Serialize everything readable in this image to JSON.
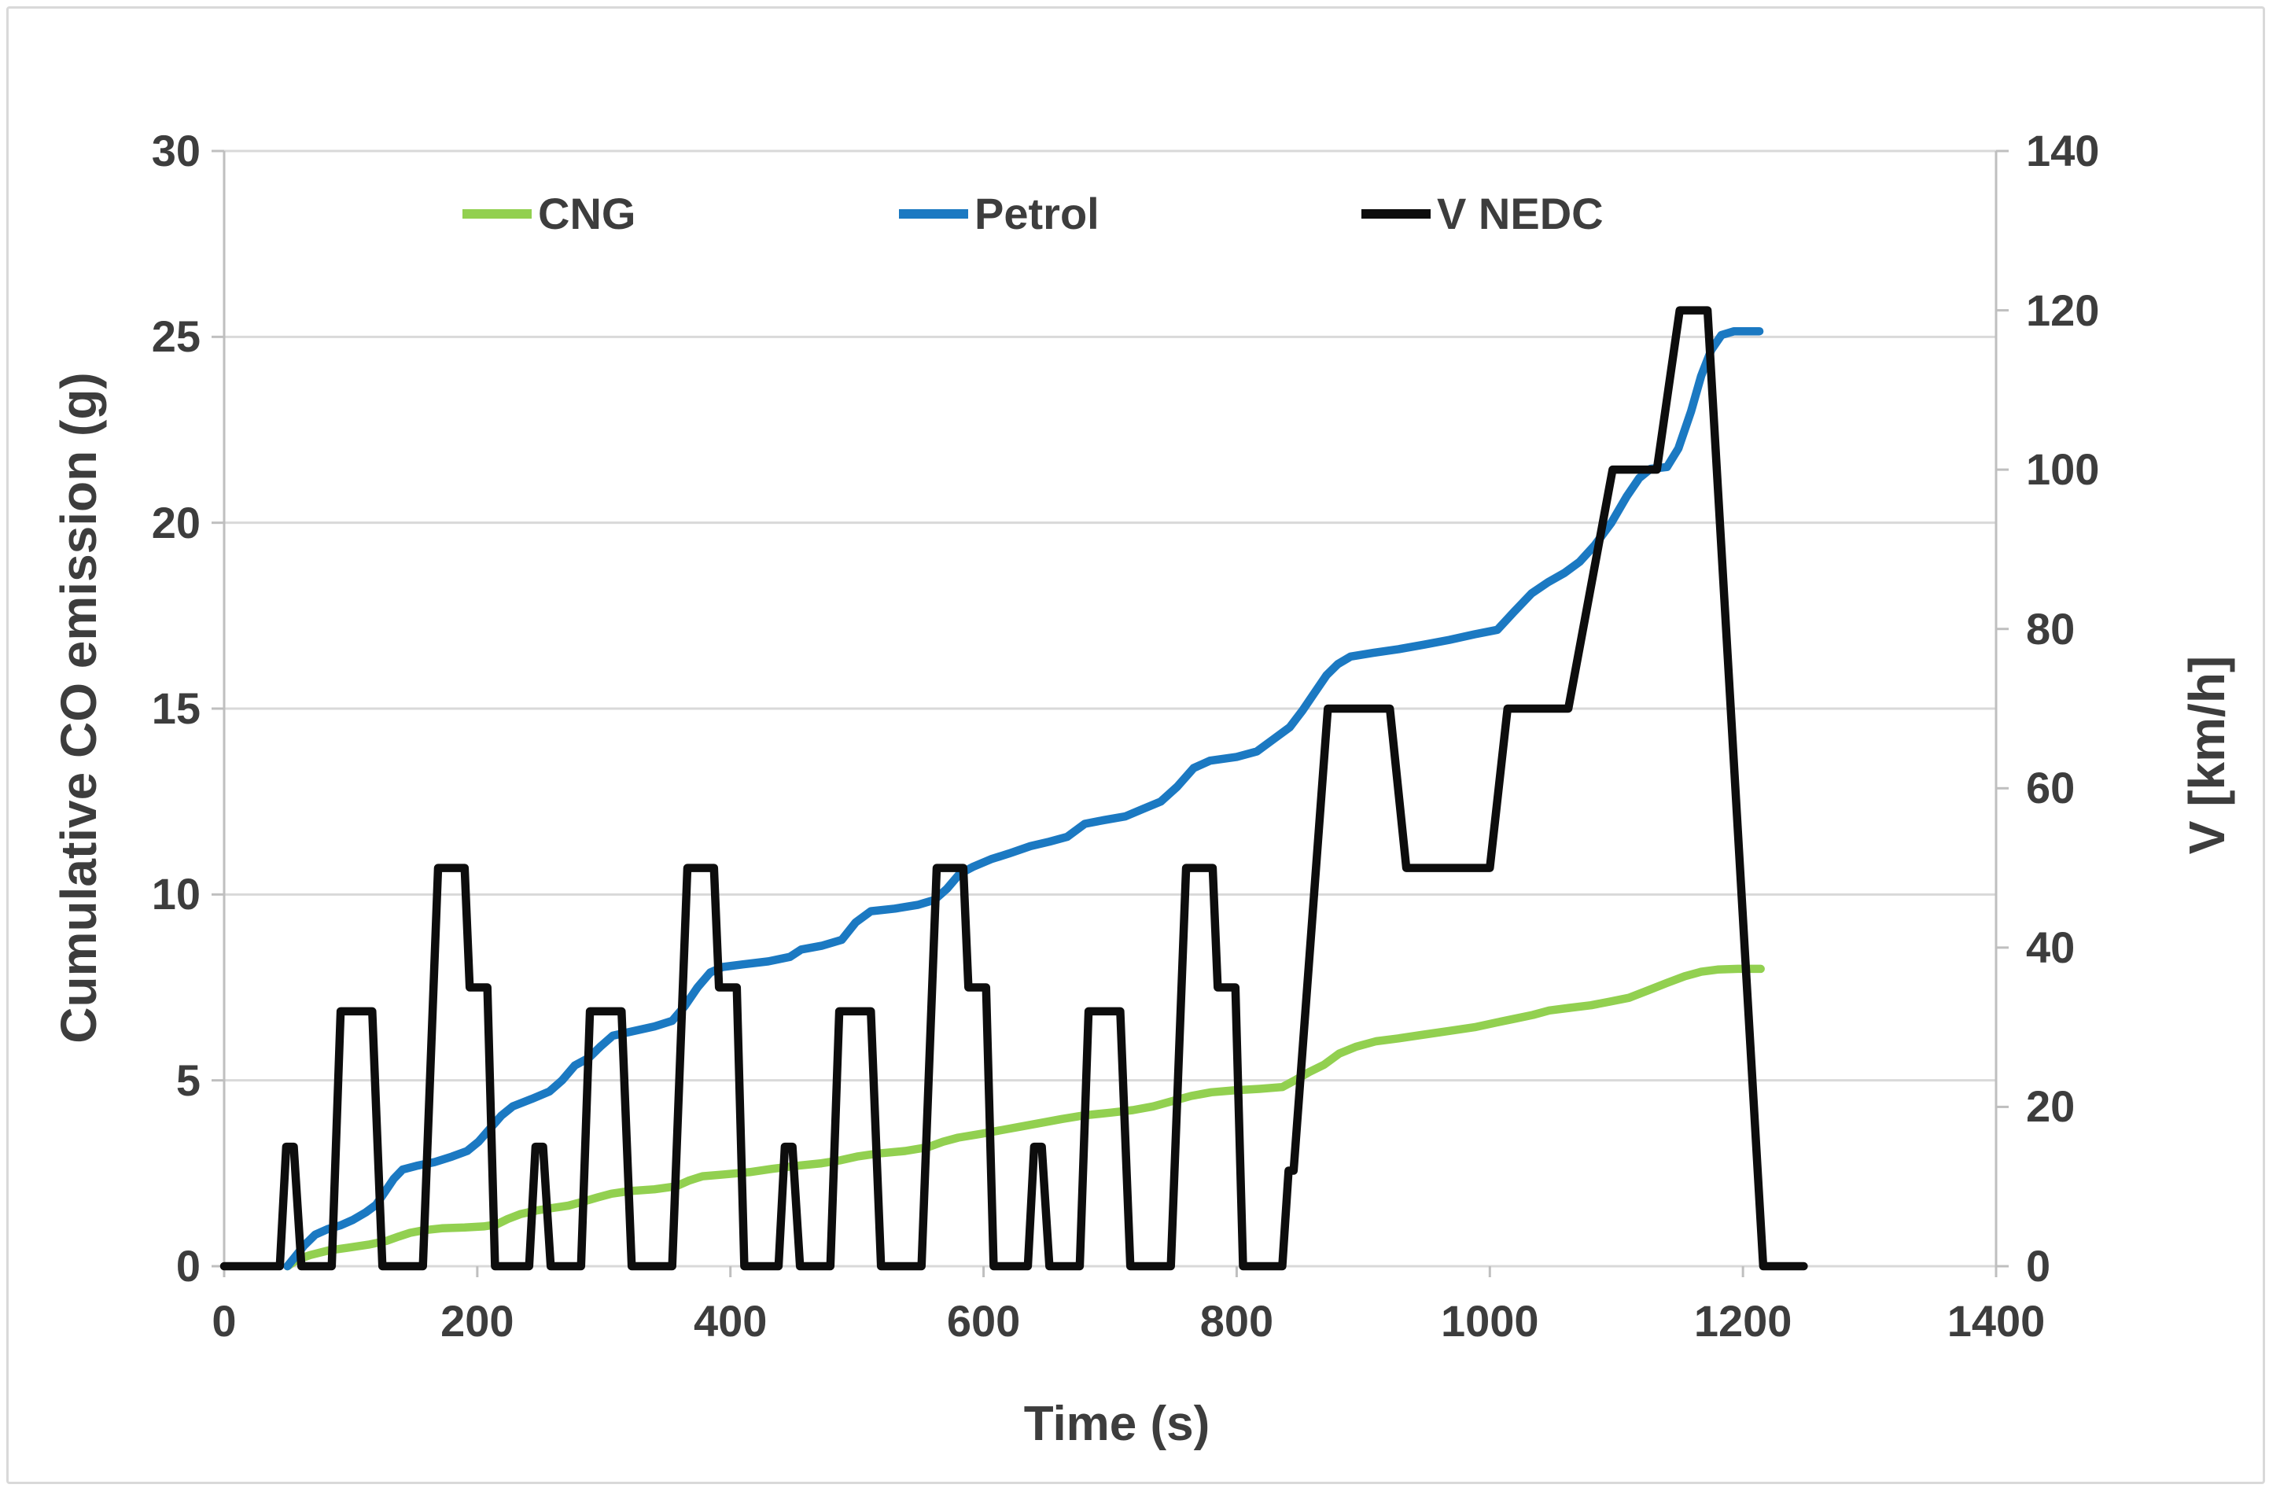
{
  "chart_data": {
    "type": "line",
    "title": "",
    "xlabel": "Time (s)",
    "ylabel_left": "Cumulative CO emission (g)",
    "ylabel_right": "V [km/h]",
    "x_range": [
      0,
      1400
    ],
    "x_ticks": [
      0,
      200,
      400,
      600,
      800,
      1000,
      1200,
      1400
    ],
    "y_left_range": [
      0,
      30
    ],
    "y_left_ticks": [
      0,
      5,
      10,
      15,
      20,
      25,
      30
    ],
    "y_right_range": [
      0,
      140
    ],
    "y_right_ticks": [
      0,
      20,
      40,
      60,
      80,
      100,
      120,
      140
    ],
    "grid": true,
    "legend_position": "top-inside",
    "colors": {
      "grid": "#d9d9d9",
      "axis_line": "#bfbfbf",
      "text": "#3d3d3d",
      "cng_green": "#92d050",
      "petrol_blue": "#1b79c2",
      "nedc_black": "#0d0d0d"
    },
    "series": [
      {
        "name": "CNG",
        "axis": "left",
        "color": "#92d050",
        "points": [
          [
            50,
            0
          ],
          [
            58,
            0.18
          ],
          [
            68,
            0.3
          ],
          [
            82,
            0.42
          ],
          [
            98,
            0.5
          ],
          [
            114,
            0.58
          ],
          [
            128,
            0.68
          ],
          [
            138,
            0.8
          ],
          [
            147,
            0.9
          ],
          [
            158,
            0.97
          ],
          [
            172,
            1.02
          ],
          [
            190,
            1.04
          ],
          [
            205,
            1.07
          ],
          [
            215,
            1.12
          ],
          [
            224,
            1.27
          ],
          [
            234,
            1.4
          ],
          [
            247,
            1.5
          ],
          [
            260,
            1.57
          ],
          [
            272,
            1.63
          ],
          [
            283,
            1.73
          ],
          [
            295,
            1.85
          ],
          [
            306,
            1.95
          ],
          [
            320,
            2.02
          ],
          [
            340,
            2.07
          ],
          [
            357,
            2.15
          ],
          [
            367,
            2.3
          ],
          [
            378,
            2.42
          ],
          [
            395,
            2.47
          ],
          [
            415,
            2.53
          ],
          [
            433,
            2.62
          ],
          [
            452,
            2.7
          ],
          [
            472,
            2.77
          ],
          [
            487,
            2.85
          ],
          [
            500,
            2.95
          ],
          [
            516,
            3.03
          ],
          [
            538,
            3.1
          ],
          [
            556,
            3.2
          ],
          [
            568,
            3.35
          ],
          [
            580,
            3.46
          ],
          [
            598,
            3.56
          ],
          [
            614,
            3.66
          ],
          [
            630,
            3.76
          ],
          [
            646,
            3.86
          ],
          [
            662,
            3.96
          ],
          [
            680,
            4.06
          ],
          [
            700,
            4.13
          ],
          [
            718,
            4.2
          ],
          [
            734,
            4.3
          ],
          [
            750,
            4.45
          ],
          [
            764,
            4.58
          ],
          [
            780,
            4.68
          ],
          [
            798,
            4.73
          ],
          [
            818,
            4.77
          ],
          [
            836,
            4.82
          ],
          [
            847,
            5.02
          ],
          [
            857,
            5.22
          ],
          [
            869,
            5.42
          ],
          [
            881,
            5.72
          ],
          [
            894,
            5.9
          ],
          [
            910,
            6.05
          ],
          [
            928,
            6.13
          ],
          [
            948,
            6.23
          ],
          [
            968,
            6.33
          ],
          [
            988,
            6.43
          ],
          [
            1006,
            6.56
          ],
          [
            1020,
            6.66
          ],
          [
            1034,
            6.76
          ],
          [
            1047,
            6.88
          ],
          [
            1063,
            6.95
          ],
          [
            1080,
            7.02
          ],
          [
            1095,
            7.12
          ],
          [
            1110,
            7.22
          ],
          [
            1125,
            7.42
          ],
          [
            1140,
            7.62
          ],
          [
            1154,
            7.8
          ],
          [
            1167,
            7.92
          ],
          [
            1180,
            7.98
          ],
          [
            1196,
            8.0
          ],
          [
            1214,
            8.0
          ]
        ]
      },
      {
        "name": "Petrol",
        "axis": "left",
        "color": "#1b79c2",
        "points": [
          [
            50,
            0
          ],
          [
            56,
            0.25
          ],
          [
            63,
            0.55
          ],
          [
            72,
            0.85
          ],
          [
            82,
            1.0
          ],
          [
            92,
            1.1
          ],
          [
            102,
            1.25
          ],
          [
            112,
            1.45
          ],
          [
            120,
            1.65
          ],
          [
            127,
            2.0
          ],
          [
            134,
            2.35
          ],
          [
            141,
            2.6
          ],
          [
            152,
            2.7
          ],
          [
            166,
            2.8
          ],
          [
            180,
            2.95
          ],
          [
            192,
            3.1
          ],
          [
            201,
            3.35
          ],
          [
            210,
            3.7
          ],
          [
            219,
            4.05
          ],
          [
            228,
            4.3
          ],
          [
            243,
            4.5
          ],
          [
            257,
            4.7
          ],
          [
            267,
            5.0
          ],
          [
            277,
            5.4
          ],
          [
            288,
            5.6
          ],
          [
            297,
            5.9
          ],
          [
            307,
            6.2
          ],
          [
            320,
            6.3
          ],
          [
            340,
            6.45
          ],
          [
            354,
            6.6
          ],
          [
            364,
            7.0
          ],
          [
            374,
            7.5
          ],
          [
            384,
            7.9
          ],
          [
            394,
            8.05
          ],
          [
            410,
            8.12
          ],
          [
            430,
            8.2
          ],
          [
            447,
            8.32
          ],
          [
            456,
            8.52
          ],
          [
            472,
            8.62
          ],
          [
            488,
            8.78
          ],
          [
            499,
            9.25
          ],
          [
            511,
            9.55
          ],
          [
            530,
            9.62
          ],
          [
            548,
            9.72
          ],
          [
            561,
            9.85
          ],
          [
            571,
            10.15
          ],
          [
            581,
            10.55
          ],
          [
            592,
            10.75
          ],
          [
            606,
            10.95
          ],
          [
            620,
            11.1
          ],
          [
            637,
            11.3
          ],
          [
            652,
            11.42
          ],
          [
            666,
            11.55
          ],
          [
            680,
            11.9
          ],
          [
            695,
            12.0
          ],
          [
            712,
            12.1
          ],
          [
            726,
            12.3
          ],
          [
            740,
            12.5
          ],
          [
            753,
            12.9
          ],
          [
            766,
            13.4
          ],
          [
            779,
            13.6
          ],
          [
            800,
            13.7
          ],
          [
            816,
            13.85
          ],
          [
            830,
            14.2
          ],
          [
            842,
            14.5
          ],
          [
            852,
            14.95
          ],
          [
            861,
            15.4
          ],
          [
            871,
            15.9
          ],
          [
            880,
            16.2
          ],
          [
            890,
            16.4
          ],
          [
            908,
            16.5
          ],
          [
            928,
            16.6
          ],
          [
            948,
            16.72
          ],
          [
            968,
            16.85
          ],
          [
            988,
            17.0
          ],
          [
            1006,
            17.12
          ],
          [
            1019,
            17.6
          ],
          [
            1033,
            18.1
          ],
          [
            1046,
            18.4
          ],
          [
            1059,
            18.65
          ],
          [
            1071,
            18.95
          ],
          [
            1083,
            19.4
          ],
          [
            1096,
            20.0
          ],
          [
            1108,
            20.7
          ],
          [
            1118,
            21.2
          ],
          [
            1127,
            21.45
          ],
          [
            1140,
            21.5
          ],
          [
            1149,
            22.0
          ],
          [
            1159,
            23.0
          ],
          [
            1167,
            23.95
          ],
          [
            1175,
            24.65
          ],
          [
            1183,
            25.05
          ],
          [
            1193,
            25.15
          ],
          [
            1213,
            25.15
          ]
        ]
      },
      {
        "name": "V NEDC",
        "axis": "right",
        "color": "#0d0d0d",
        "points": [
          [
            0,
            0
          ],
          [
            44,
            0
          ],
          [
            49,
            15
          ],
          [
            55,
            15
          ],
          [
            61,
            0
          ],
          [
            85,
            0
          ],
          [
            92,
            32
          ],
          [
            117,
            32
          ],
          [
            125,
            0
          ],
          [
            157,
            0
          ],
          [
            169,
            50
          ],
          [
            190,
            50
          ],
          [
            194,
            35
          ],
          [
            208,
            35
          ],
          [
            214,
            0
          ],
          [
            241,
            0
          ],
          [
            246,
            15
          ],
          [
            252,
            15
          ],
          [
            258,
            0
          ],
          [
            282,
            0
          ],
          [
            289,
            32
          ],
          [
            314,
            32
          ],
          [
            322,
            0
          ],
          [
            354,
            0
          ],
          [
            366,
            50
          ],
          [
            387,
            50
          ],
          [
            391,
            35
          ],
          [
            405,
            35
          ],
          [
            411,
            0
          ],
          [
            438,
            0
          ],
          [
            443,
            15
          ],
          [
            449,
            15
          ],
          [
            455,
            0
          ],
          [
            479,
            0
          ],
          [
            486,
            32
          ],
          [
            511,
            32
          ],
          [
            519,
            0
          ],
          [
            551,
            0
          ],
          [
            563,
            50
          ],
          [
            584,
            50
          ],
          [
            588,
            35
          ],
          [
            602,
            35
          ],
          [
            608,
            0
          ],
          [
            635,
            0
          ],
          [
            640,
            15
          ],
          [
            646,
            15
          ],
          [
            652,
            0
          ],
          [
            676,
            0
          ],
          [
            683,
            32
          ],
          [
            708,
            32
          ],
          [
            716,
            0
          ],
          [
            748,
            0
          ],
          [
            760,
            50
          ],
          [
            781,
            50
          ],
          [
            785,
            35
          ],
          [
            799,
            35
          ],
          [
            805,
            0
          ],
          [
            836,
            0
          ],
          [
            841,
            12
          ],
          [
            845,
            12
          ],
          [
            872,
            70
          ],
          [
            921,
            70
          ],
          [
            934,
            50
          ],
          [
            1000,
            50
          ],
          [
            1014,
            70
          ],
          [
            1062,
            70
          ],
          [
            1097,
            100
          ],
          [
            1132,
            100
          ],
          [
            1150,
            120
          ],
          [
            1172,
            120
          ],
          [
            1216,
            0
          ],
          [
            1248,
            0
          ]
        ]
      }
    ]
  },
  "legend": {
    "items": [
      {
        "label": "CNG"
      },
      {
        "label": "Petrol"
      },
      {
        "label": "V NEDC"
      }
    ]
  }
}
